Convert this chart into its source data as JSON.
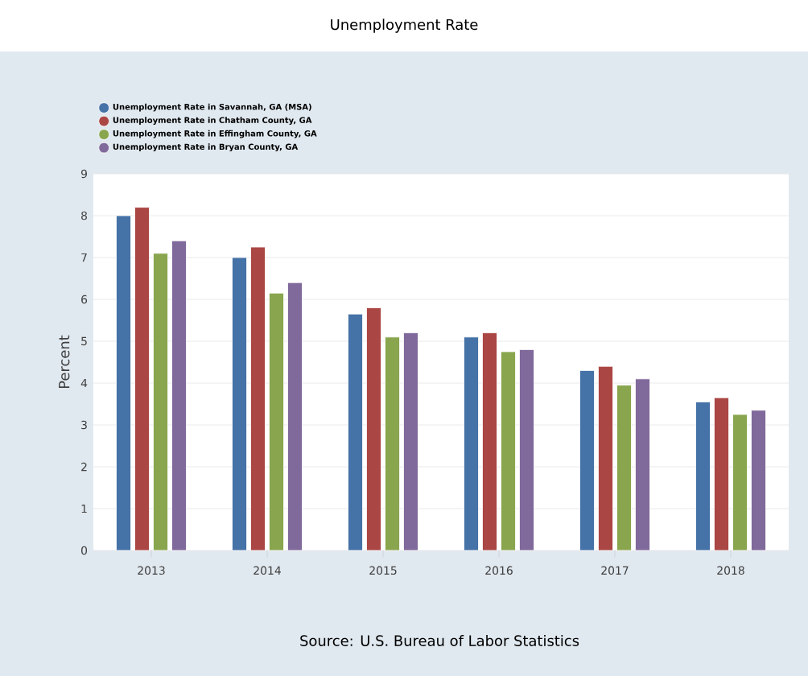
{
  "chart_data": {
    "type": "bar",
    "title": "Unemployment Rate",
    "ylabel": "Percent",
    "categories": [
      "2013",
      "2014",
      "2015",
      "2016",
      "2017",
      "2018"
    ],
    "series": [
      {
        "name": "Unemployment Rate in Savannah, GA (MSA)",
        "color": "#4572a7",
        "values": [
          8.0,
          7.0,
          5.65,
          5.1,
          4.3,
          3.55
        ]
      },
      {
        "name": "Unemployment Rate in Chatham County, GA",
        "color": "#aa4643",
        "values": [
          8.2,
          7.25,
          5.8,
          5.2,
          4.4,
          3.65
        ]
      },
      {
        "name": "Unemployment Rate in Effingham County, GA",
        "color": "#89a54e",
        "values": [
          7.1,
          6.15,
          5.1,
          4.75,
          3.95,
          3.25
        ]
      },
      {
        "name": "Unemployment Rate in Bryan County, GA",
        "color": "#80699b",
        "values": [
          7.4,
          6.4,
          5.2,
          4.8,
          4.1,
          3.35
        ]
      }
    ],
    "ylim": [
      0,
      9
    ],
    "yticks": [
      0,
      1,
      2,
      3,
      4,
      5,
      6,
      7,
      8,
      9
    ],
    "grid": "y",
    "legend": "top left",
    "annotations": [
      "Source: U.S. Bureau of Labor Statistics"
    ]
  }
}
